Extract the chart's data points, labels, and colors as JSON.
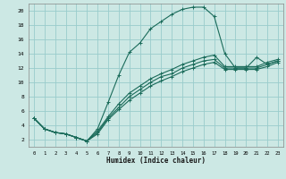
{
  "xlabel": "Humidex (Indice chaleur)",
  "bg_color": "#cce8e4",
  "grid_color": "#99cccc",
  "line_color": "#1a6b5a",
  "xlim": [
    -0.5,
    23.5
  ],
  "ylim": [
    1.0,
    21.0
  ],
  "yticks": [
    2,
    4,
    6,
    8,
    10,
    12,
    14,
    16,
    18,
    20
  ],
  "xticks": [
    0,
    1,
    2,
    3,
    4,
    5,
    6,
    7,
    8,
    9,
    10,
    11,
    12,
    13,
    14,
    15,
    16,
    17,
    18,
    19,
    20,
    21,
    22,
    23
  ],
  "curve1_x": [
    0,
    1,
    2,
    3,
    4,
    5,
    6,
    7,
    8,
    9,
    10,
    11,
    12,
    13,
    14,
    15,
    16,
    17,
    18,
    19,
    20,
    21,
    22,
    23
  ],
  "curve1_y": [
    5.0,
    3.5,
    3.0,
    2.8,
    2.3,
    1.8,
    3.5,
    7.2,
    11.0,
    14.2,
    15.5,
    17.5,
    18.5,
    19.5,
    20.2,
    20.5,
    20.5,
    19.2,
    14.0,
    12.0,
    12.0,
    13.5,
    12.5,
    13.0
  ],
  "curve2_x": [
    0,
    1,
    2,
    3,
    4,
    5,
    6,
    7,
    8,
    9,
    10,
    11,
    12,
    13,
    14,
    15,
    16,
    17,
    18,
    19,
    20,
    21,
    22,
    23
  ],
  "curve2_y": [
    5.0,
    3.5,
    3.0,
    2.8,
    2.3,
    1.8,
    3.2,
    5.2,
    7.0,
    8.5,
    9.5,
    10.5,
    11.2,
    11.8,
    12.5,
    13.0,
    13.5,
    13.8,
    12.2,
    12.2,
    12.2,
    12.2,
    12.8,
    13.2
  ],
  "curve3_x": [
    0,
    1,
    2,
    3,
    4,
    5,
    6,
    7,
    8,
    9,
    10,
    11,
    12,
    13,
    14,
    15,
    16,
    17,
    18,
    19,
    20,
    21,
    22,
    23
  ],
  "curve3_y": [
    5.0,
    3.5,
    3.0,
    2.8,
    2.3,
    1.8,
    3.0,
    5.0,
    6.5,
    8.0,
    9.0,
    10.0,
    10.8,
    11.2,
    12.0,
    12.5,
    13.0,
    13.2,
    12.0,
    12.0,
    12.0,
    12.0,
    12.5,
    13.0
  ],
  "curve4_x": [
    0,
    1,
    2,
    3,
    4,
    5,
    6,
    7,
    8,
    9,
    10,
    11,
    12,
    13,
    14,
    15,
    16,
    17,
    18,
    19,
    20,
    21,
    22,
    23
  ],
  "curve4_y": [
    5.0,
    3.5,
    3.0,
    2.8,
    2.3,
    1.8,
    2.8,
    4.8,
    6.2,
    7.5,
    8.5,
    9.5,
    10.2,
    10.8,
    11.5,
    12.0,
    12.5,
    12.8,
    11.8,
    11.8,
    11.8,
    11.8,
    12.2,
    12.8
  ]
}
